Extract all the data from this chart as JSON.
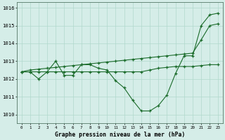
{
  "title": "Graphe pression niveau de la mer (hPa)",
  "hours": [
    0,
    1,
    2,
    3,
    4,
    5,
    6,
    7,
    8,
    9,
    10,
    11,
    12,
    13,
    14,
    15,
    16,
    17,
    18,
    19,
    20,
    21,
    22,
    23
  ],
  "ylim": [
    1009.5,
    1016.3
  ],
  "yticks": [
    1010,
    1011,
    1012,
    1013,
    1014,
    1015,
    1016
  ],
  "bg_color": "#d5ede8",
  "grid_color": "#b0d8cc",
  "line_color": "#1a6b2a",
  "series1": [
    1012.4,
    1012.4,
    1012.0,
    1012.4,
    1013.0,
    1012.2,
    1012.2,
    1012.8,
    1012.8,
    1012.6,
    1012.5,
    1011.9,
    1011.5,
    1010.8,
    1010.2,
    1010.2,
    1010.5,
    1011.1,
    1012.3,
    1013.3,
    1013.3,
    1015.0,
    1015.6,
    1015.7
  ],
  "series2": [
    1012.4,
    1012.4,
    1012.4,
    1012.4,
    1012.4,
    1012.4,
    1012.4,
    1012.4,
    1012.4,
    1012.4,
    1012.4,
    1012.4,
    1012.4,
    1012.4,
    1012.4,
    1012.5,
    1012.6,
    1012.65,
    1012.7,
    1012.7,
    1012.7,
    1012.75,
    1012.8,
    1012.8
  ],
  "series3": [
    1012.4,
    1012.5,
    1012.55,
    1012.6,
    1012.65,
    1012.7,
    1012.75,
    1012.8,
    1012.85,
    1012.9,
    1012.95,
    1013.0,
    1013.05,
    1013.1,
    1013.15,
    1013.2,
    1013.25,
    1013.3,
    1013.35,
    1013.4,
    1013.45,
    1014.2,
    1015.0,
    1015.1
  ]
}
